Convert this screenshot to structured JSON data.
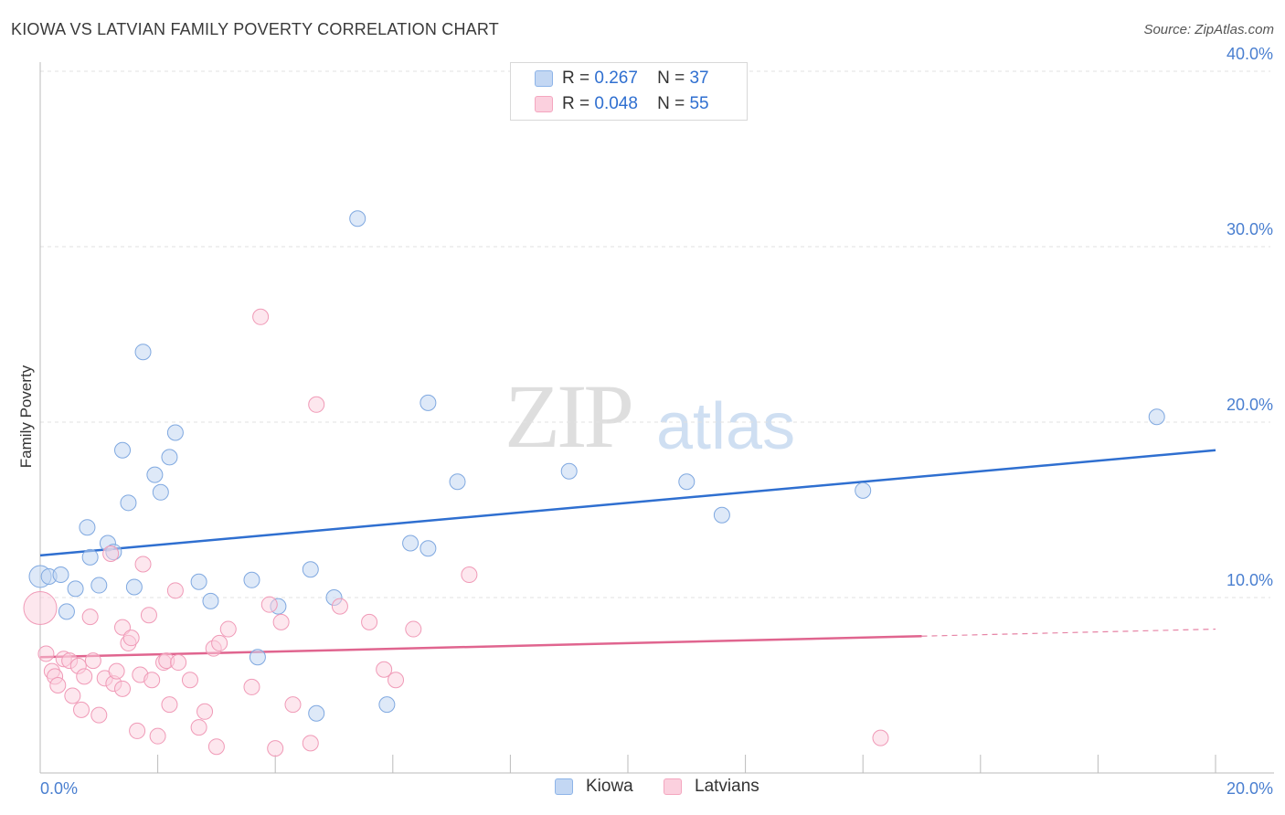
{
  "title": "KIOWA VS LATVIAN FAMILY POVERTY CORRELATION CHART",
  "source": "Source: ZipAtlas.com",
  "watermark": {
    "zip": "ZIP",
    "atlas": "atlas"
  },
  "colors": {
    "kiowa": "#8db4e8",
    "kiowa_line": "#2f6fd0",
    "latvians": "#f4a6bf",
    "latvians_line": "#e0658f",
    "axis_text": "#4a7fd0"
  },
  "legend": {
    "rows": [
      {
        "r_label": "R =",
        "r_value": "0.267",
        "n_label": "N =",
        "n_value": "37"
      },
      {
        "r_label": "R =",
        "r_value": "0.048",
        "n_label": "N =",
        "n_value": "55"
      }
    ]
  },
  "bottom_legend": [
    "Kiowa",
    "Latvians"
  ],
  "chart_data": {
    "type": "scatter",
    "title": "KIOWA VS LATVIAN FAMILY POVERTY CORRELATION CHART",
    "xlabel": "",
    "ylabel": "Family Poverty",
    "xlim": [
      0,
      20
    ],
    "ylim": [
      0,
      40
    ],
    "x_tick_labels": [
      "0.0%",
      "20.0%"
    ],
    "y_tick_labels": [
      "10.0%",
      "20.0%",
      "30.0%",
      "40.0%"
    ],
    "grid": true,
    "series": [
      {
        "name": "Kiowa",
        "r": 0.267,
        "n": 37,
        "trend": {
          "x": [
            0,
            20
          ],
          "y": [
            12.4,
            18.4
          ]
        },
        "points": [
          [
            0.0,
            11.2
          ],
          [
            0.15,
            11.2
          ],
          [
            0.35,
            11.3
          ],
          [
            0.45,
            9.2
          ],
          [
            0.6,
            10.5
          ],
          [
            0.8,
            14.0
          ],
          [
            0.85,
            12.3
          ],
          [
            1.0,
            10.7
          ],
          [
            1.15,
            13.1
          ],
          [
            1.25,
            12.6
          ],
          [
            1.4,
            18.4
          ],
          [
            1.5,
            15.4
          ],
          [
            1.6,
            10.6
          ],
          [
            1.75,
            24.0
          ],
          [
            1.95,
            17.0
          ],
          [
            2.05,
            16.0
          ],
          [
            2.2,
            18.0
          ],
          [
            2.3,
            19.4
          ],
          [
            2.7,
            10.9
          ],
          [
            2.9,
            9.8
          ],
          [
            3.6,
            11.0
          ],
          [
            3.7,
            6.6
          ],
          [
            4.05,
            9.5
          ],
          [
            4.6,
            11.6
          ],
          [
            4.7,
            3.4
          ],
          [
            5.0,
            10.0
          ],
          [
            5.4,
            31.6
          ],
          [
            5.9,
            3.9
          ],
          [
            6.3,
            13.1
          ],
          [
            6.6,
            21.1
          ],
          [
            6.6,
            12.8
          ],
          [
            7.1,
            16.6
          ],
          [
            9.0,
            17.2
          ],
          [
            11.0,
            16.6
          ],
          [
            11.6,
            14.7
          ],
          [
            14.0,
            16.1
          ],
          [
            19.0,
            20.3
          ]
        ]
      },
      {
        "name": "Latvians",
        "r": 0.048,
        "n": 55,
        "trend": {
          "x": [
            0,
            15
          ],
          "y": [
            6.6,
            7.8
          ]
        },
        "trend_dashed": {
          "x": [
            15,
            20
          ],
          "y": [
            7.8,
            8.2
          ]
        },
        "points": [
          [
            0.0,
            9.4
          ],
          [
            0.1,
            6.8
          ],
          [
            0.2,
            5.8
          ],
          [
            0.25,
            5.5
          ],
          [
            0.3,
            5.0
          ],
          [
            0.4,
            6.5
          ],
          [
            0.5,
            6.4
          ],
          [
            0.55,
            4.4
          ],
          [
            0.65,
            6.1
          ],
          [
            0.7,
            3.6
          ],
          [
            0.75,
            5.5
          ],
          [
            0.85,
            8.9
          ],
          [
            0.9,
            6.4
          ],
          [
            1.0,
            3.3
          ],
          [
            1.1,
            5.4
          ],
          [
            1.2,
            12.5
          ],
          [
            1.25,
            5.1
          ],
          [
            1.3,
            5.8
          ],
          [
            1.4,
            4.8
          ],
          [
            1.4,
            8.3
          ],
          [
            1.5,
            7.4
          ],
          [
            1.55,
            7.7
          ],
          [
            1.65,
            2.4
          ],
          [
            1.7,
            5.6
          ],
          [
            1.75,
            11.9
          ],
          [
            1.85,
            9.0
          ],
          [
            1.9,
            5.3
          ],
          [
            2.0,
            2.1
          ],
          [
            2.1,
            6.3
          ],
          [
            2.15,
            6.4
          ],
          [
            2.2,
            3.9
          ],
          [
            2.3,
            10.4
          ],
          [
            2.35,
            6.3
          ],
          [
            2.55,
            5.3
          ],
          [
            2.7,
            2.6
          ],
          [
            2.8,
            3.5
          ],
          [
            2.95,
            7.1
          ],
          [
            3.05,
            7.4
          ],
          [
            3.0,
            1.5
          ],
          [
            3.2,
            8.2
          ],
          [
            3.6,
            4.9
          ],
          [
            3.75,
            26.0
          ],
          [
            3.9,
            9.6
          ],
          [
            4.0,
            1.4
          ],
          [
            4.1,
            8.6
          ],
          [
            4.3,
            3.9
          ],
          [
            4.6,
            1.7
          ],
          [
            4.7,
            21.0
          ],
          [
            5.1,
            9.5
          ],
          [
            5.6,
            8.6
          ],
          [
            5.85,
            5.9
          ],
          [
            6.05,
            5.3
          ],
          [
            6.35,
            8.2
          ],
          [
            7.3,
            11.3
          ],
          [
            14.3,
            2.0
          ]
        ]
      }
    ]
  }
}
